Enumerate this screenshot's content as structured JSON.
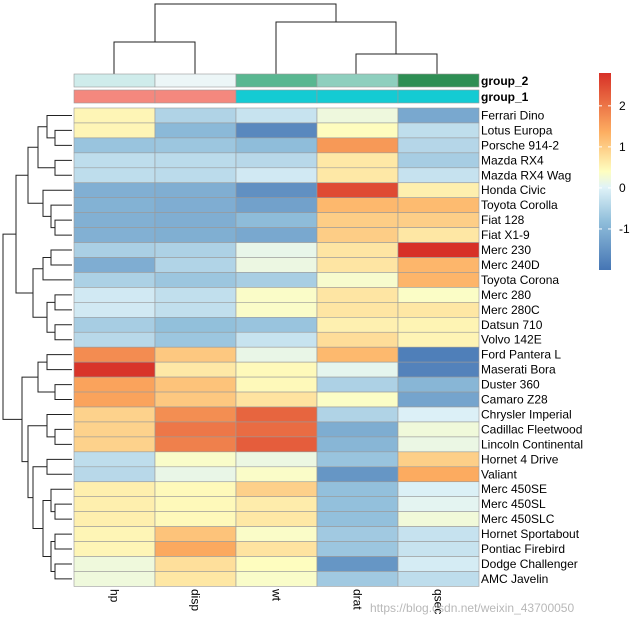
{
  "chart_data": {
    "type": "heatmap",
    "title": "",
    "columns": [
      "hp",
      "disp",
      "wt",
      "drat",
      "qsec"
    ],
    "rows": [
      "Ferrari Dino",
      "Lotus Europa",
      "Porsche 914-2",
      "Mazda RX4",
      "Mazda RX4 Wag",
      "Honda Civic",
      "Toyota Corolla",
      "Fiat 128",
      "Fiat X1-9",
      "Merc 230",
      "Merc 240D",
      "Toyota Corona",
      "Merc 280",
      "Merc 280C",
      "Datsun 710",
      "Volvo 142E",
      "Ford Pantera L",
      "Maserati Bora",
      "Duster 360",
      "Camaro Z28",
      "Chrysler Imperial",
      "Cadillac Fleetwood",
      "Lincoln Continental",
      "Hornet 4 Drive",
      "Valiant",
      "Merc 450SE",
      "Merc 450SL",
      "Merc 450SLC",
      "Hornet Sportabout",
      "Pontiac Firebird",
      "Dodge Challenger",
      "AMC Javelin"
    ],
    "values": [
      [
        0.41,
        -0.69,
        -0.45,
        0.04,
        -1.31
      ],
      [
        0.41,
        -1.08,
        -1.74,
        0.32,
        -0.53
      ],
      [
        -0.92,
        -0.89,
        -1.03,
        1.55,
        -0.64
      ],
      [
        -0.54,
        -0.57,
        -0.61,
        0.57,
        -0.78
      ],
      [
        -0.54,
        -0.57,
        -0.35,
        0.57,
        -0.46
      ],
      [
        -1.21,
        -1.23,
        -1.63,
        2.49,
        0.49
      ],
      [
        -1.18,
        -1.24,
        -1.41,
        1.17,
        1.14
      ],
      [
        -1.2,
        -1.23,
        -1.04,
        0.91,
        0.9
      ],
      [
        -1.2,
        -1.22,
        -1.31,
        0.91,
        0.59
      ],
      [
        -0.75,
        -0.72,
        -0.07,
        0.61,
        2.83
      ],
      [
        -1.24,
        -0.68,
        -0.0,
        0.61,
        1.2
      ],
      [
        -0.73,
        -0.89,
        -0.77,
        0.18,
        1.21
      ],
      [
        -0.35,
        -0.51,
        0.23,
        0.61,
        0.25
      ],
      [
        -0.35,
        -0.51,
        0.23,
        0.61,
        0.59
      ],
      [
        -0.78,
        -0.99,
        -0.92,
        0.47,
        0.43
      ],
      [
        -0.61,
        -0.89,
        -0.45,
        0.71,
        0.42
      ],
      [
        1.71,
        0.97,
        -0.05,
        1.16,
        -1.87
      ],
      [
        2.75,
        0.57,
        0.36,
        -0.11,
        -1.82
      ],
      [
        1.43,
        1.04,
        0.36,
        -0.72,
        -1.12
      ],
      [
        1.43,
        0.97,
        0.64,
        0.25,
        -1.37
      ],
      [
        0.85,
        1.68,
        2.17,
        -0.69,
        -0.24
      ],
      [
        0.85,
        1.95,
        2.08,
        -1.25,
        0.07
      ],
      [
        0.85,
        1.85,
        2.26,
        -1.12,
        -0.02
      ],
      [
        -0.54,
        0.22,
        -0.0,
        -0.92,
        0.89
      ],
      [
        -0.61,
        -0.05,
        0.23,
        -1.56,
        1.33
      ],
      [
        0.49,
        0.36,
        0.87,
        -0.98,
        -0.25
      ],
      [
        0.49,
        0.36,
        0.52,
        -0.98,
        -0.14
      ],
      [
        0.49,
        0.36,
        0.58,
        -0.98,
        0.08
      ],
      [
        0.41,
        1.04,
        0.23,
        -0.84,
        -0.46
      ],
      [
        0.41,
        1.36,
        0.64,
        -0.89,
        -0.45
      ],
      [
        0.05,
        0.69,
        0.31,
        -1.56,
        -0.31
      ],
      [
        0.05,
        0.59,
        0.22,
        -0.84,
        -0.54
      ]
    ],
    "color_range": [
      -2,
      2.8
    ],
    "legend_ticks": [
      "-1",
      "0",
      "1",
      "2"
    ],
    "legend_tick_values": [
      -1,
      0,
      1,
      2
    ],
    "annotations": [
      {
        "name": "group_2",
        "colors": [
          "#cfeceb",
          "#ecf6f7",
          "#59b791",
          "#8ecfbe",
          "#2e8e54"
        ]
      },
      {
        "name": "group_1",
        "colors": [
          "#f4887e",
          "#f4887e",
          "#14cbd3",
          "#14cbd3",
          "#14cbd3"
        ]
      }
    ]
  },
  "watermark": "https://blog.csdn.net/weixin_43700050"
}
